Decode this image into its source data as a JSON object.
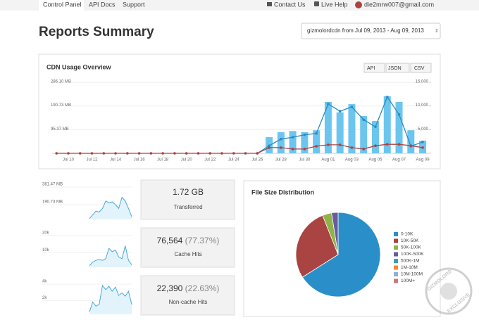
{
  "nav": {
    "items": [
      "Control Panel",
      "API Docs",
      "Support"
    ],
    "links": [
      "Contact Us",
      "Live Help"
    ],
    "user": "die2mrw007@gmail.com"
  },
  "header": {
    "title": "Reports Summary",
    "range": "gizmolordcdn from Jul 09, 2013 - Aug 09, 2013"
  },
  "stats": [
    {
      "value": "1.72 GB",
      "label": "Transferred"
    },
    {
      "value": "76,564",
      "percent": "(77.37%)",
      "label": "Cache Hits"
    },
    {
      "value": "22,390",
      "percent": "(22.63%)",
      "label": "Non-cache Hits"
    }
  ],
  "watermark": [
    "GIZMOLORD",
    "EXCLUSIVE"
  ],
  "chart_data": [
    {
      "type": "bar_line",
      "title": "CDN Usage Overview",
      "buttons": [
        "API",
        "JSON",
        "CSV"
      ],
      "categories": [
        null,
        "Jul 10",
        null,
        "Jul 12",
        null,
        "Jul 14",
        null,
        "Jul 16",
        null,
        "Jul 18",
        null,
        "Jul 20",
        null,
        "Jul 22",
        null,
        "Jul 24",
        null,
        "Jul 26",
        null,
        "Jul 28",
        null,
        "Jul 30",
        null,
        "Aug 01",
        null,
        "Aug 03",
        null,
        "Aug 05",
        null,
        "Aug 07",
        null,
        "Aug 09"
      ],
      "series": [
        {
          "type": "bar",
          "color": "#6cc5ee",
          "values": [
            0,
            0,
            0,
            0,
            0,
            0,
            0,
            0,
            0,
            0,
            0,
            0,
            0,
            0,
            0,
            0,
            0,
            0,
            65,
            85,
            90,
            85,
            93,
            207,
            165,
            198,
            150,
            130,
            230,
            207,
            93,
            51
          ]
        },
        {
          "type": "line",
          "color": "#2b8cc4",
          "axis": "y2",
          "values": [
            null,
            null,
            null,
            null,
            null,
            null,
            null,
            null,
            null,
            null,
            null,
            null,
            null,
            null,
            null,
            null,
            null,
            0,
            1600,
            3000,
            3400,
            3900,
            4200,
            10400,
            8900,
            9800,
            7100,
            5600,
            11900,
            8200,
            1500,
            2400
          ]
        },
        {
          "type": "line",
          "color": "#a94442",
          "axis": "y2",
          "values": [
            0,
            0,
            0,
            0,
            0,
            0,
            0,
            0,
            0,
            0,
            0,
            0,
            0,
            0,
            0,
            0,
            0,
            0,
            1200,
            1200,
            900,
            900,
            1500,
            1800,
            1800,
            1200,
            900,
            1600,
            1900,
            1900,
            1600,
            1200
          ]
        }
      ],
      "ylim": [
        0,
        286.1
      ],
      "yticks": [
        {
          "value": 95.37,
          "label": "95.37 MB"
        },
        {
          "value": 190.73,
          "label": "190.73 MB"
        },
        {
          "value": 286.1,
          "label": "286.10 MB"
        }
      ],
      "y2lim": [
        0,
        15000
      ],
      "y2ticks": [
        {
          "value": 5000,
          "label": "5,000"
        },
        {
          "value": 10000,
          "label": "10,000"
        },
        {
          "value": 15000,
          "label": "15,000"
        }
      ]
    },
    {
      "type": "area",
      "color": "#4aa8d8",
      "values": [
        10,
        50,
        90,
        80,
        120,
        200,
        180,
        190,
        160,
        120,
        240,
        200,
        120,
        30
      ],
      "ylim": [
        0,
        381.47
      ],
      "yticks": [
        {
          "value": 190.73,
          "label": "190.73 MB"
        },
        {
          "value": 381.47,
          "label": "381.47 MB"
        }
      ]
    },
    {
      "type": "area",
      "color": "#4aa8d8",
      "values": [
        1000,
        3000,
        4000,
        4500,
        4000,
        5000,
        11000,
        9000,
        10000,
        6000,
        5000,
        12500,
        4000,
        1500
      ],
      "ylim": [
        0,
        20000
      ],
      "yticks": [
        {
          "value": 10000,
          "label": "10k"
        },
        {
          "value": 20000,
          "label": "20k"
        }
      ]
    },
    {
      "type": "area",
      "color": "#4aa8d8",
      "values": [
        300,
        1500,
        1000,
        1200,
        3500,
        3000,
        3400,
        2800,
        3300,
        2300,
        2600,
        2200,
        2800,
        1200
      ],
      "ylim": [
        0,
        4000
      ],
      "yticks": [
        {
          "value": 2000,
          "label": "2k"
        },
        {
          "value": 4000,
          "label": "4k"
        }
      ]
    },
    {
      "type": "pie",
      "title": "File Size Distribution",
      "categories": [
        "0-10K",
        "10K-50K",
        "50K-100K",
        "100K-500K",
        "500K-1M",
        "1M-10M",
        "10M-100M",
        "100M+"
      ],
      "values": [
        66,
        28,
        3.5,
        2.5,
        0,
        0,
        0,
        0
      ],
      "colors": [
        "#2a8fc9",
        "#a94442",
        "#8fb34a",
        "#6a5a9e",
        "#3aa0b8",
        "#f0892e",
        "#8fb0d8",
        "#c87a7a"
      ]
    }
  ]
}
